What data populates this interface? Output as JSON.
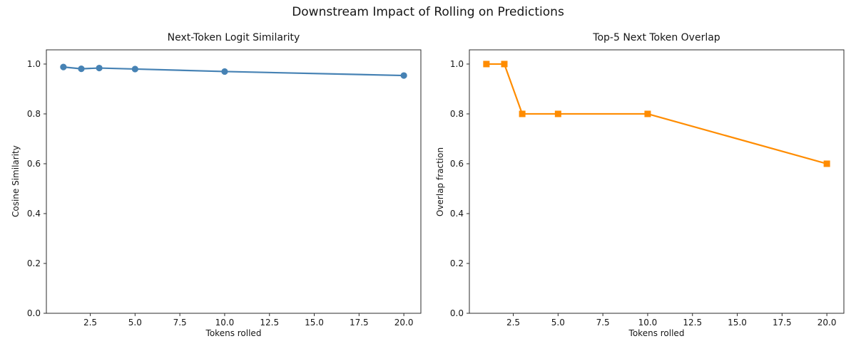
{
  "figure": {
    "suptitle": "Downstream Impact of Rolling on Predictions"
  },
  "chart_data": [
    {
      "type": "line",
      "title": "Next-Token Logit Similarity",
      "xlabel": "Tokens rolled",
      "ylabel": "Cosine Similarity",
      "x": [
        1,
        2,
        3,
        5,
        10,
        20
      ],
      "y": [
        0.988,
        0.981,
        0.984,
        0.98,
        0.97,
        0.954
      ],
      "marker": "circle",
      "color": "#4682b4",
      "xlim": [
        0.05,
        20.95
      ],
      "ylim": [
        0,
        1.057
      ],
      "xtick_values": [
        2.5,
        5,
        7.5,
        10,
        12.5,
        15,
        17.5,
        20
      ],
      "xtick_labels": [
        "2.5",
        "5.0",
        "7.5",
        "10.0",
        "12.5",
        "15.0",
        "17.5",
        "20.0"
      ],
      "ytick_values": [
        0,
        0.2,
        0.4,
        0.6,
        0.8,
        1
      ],
      "ytick_labels": [
        "0.0",
        "0.2",
        "0.4",
        "0.6",
        "0.8",
        "1.0"
      ],
      "grid": false,
      "legend": "none"
    },
    {
      "type": "line",
      "title": "Top-5 Next Token Overlap",
      "xlabel": "Tokens rolled",
      "ylabel": "Overlap fraction",
      "x": [
        1,
        2,
        3,
        5,
        10,
        20
      ],
      "y": [
        1.0,
        1.0,
        0.8,
        0.8,
        0.8,
        0.6
      ],
      "marker": "square",
      "color": "#ff8c00",
      "xlim": [
        0.05,
        20.95
      ],
      "ylim": [
        0,
        1.057
      ],
      "xtick_values": [
        2.5,
        5,
        7.5,
        10,
        12.5,
        15,
        17.5,
        20
      ],
      "xtick_labels": [
        "2.5",
        "5.0",
        "7.5",
        "10.0",
        "12.5",
        "15.0",
        "17.5",
        "20.0"
      ],
      "ytick_values": [
        0,
        0.2,
        0.4,
        0.6,
        0.8,
        1
      ],
      "ytick_labels": [
        "0.0",
        "0.2",
        "0.4",
        "0.6",
        "0.8",
        "1.0"
      ],
      "grid": false,
      "legend": "none"
    }
  ]
}
